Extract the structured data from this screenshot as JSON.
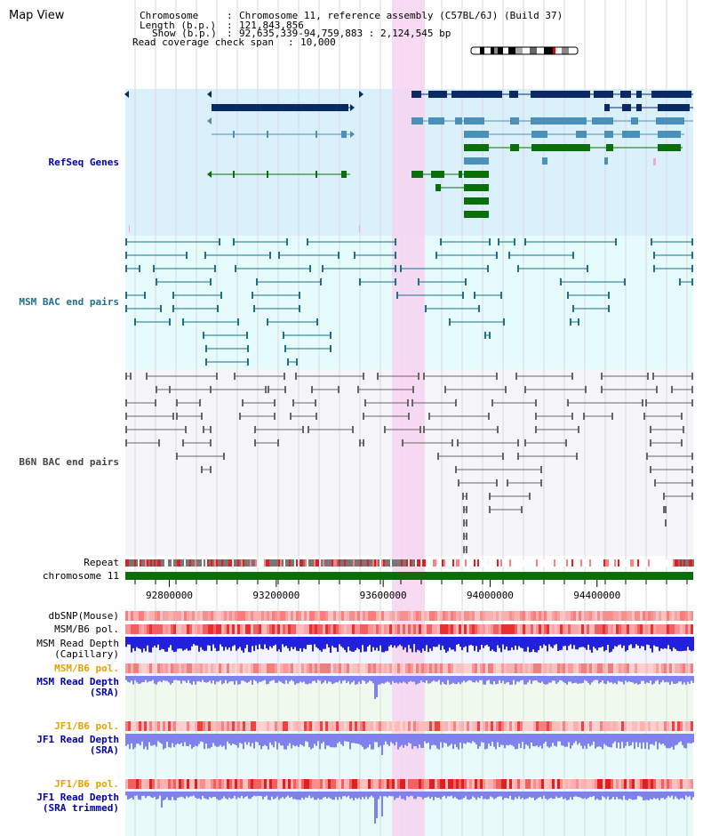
{
  "page": {
    "title": "Map View"
  },
  "header": {
    "chromosome_key": "Chromosome",
    "chromosome_val": "Chromosome 11, reference assembly (C57BL/6J) (Build 37)",
    "length_key": "Length (b.p.)",
    "length_val": "121,843,856",
    "show_key": "Show (b.p.)",
    "show_val": "92,635,339-94,759,883 : 2,124,545 bp",
    "coverage_key": "Read coverage check span",
    "coverage_val": "10,000"
  },
  "tracks": {
    "refseq": "RefSeq Genes",
    "msm_bac": "MSM BAC end pairs",
    "b6n_bac": "B6N BAC end pairs",
    "repeat": "Repeat",
    "chromosome": "chromosome 11",
    "dbsnp": "dbSNP(Mouse)",
    "msm_b6_pol_1": "MSM/B6 pol.",
    "msm_depth_cap_1": "MSM Read Depth",
    "msm_depth_cap_2": "(Capillary)",
    "msm_b6_pol_2": "MSM/B6 pol.",
    "msm_depth_sra_1": "MSM Read Depth",
    "msm_depth_sra_2": "(SRA)",
    "jf1_b6_pol_1": "JF1/B6 pol.",
    "jf1_depth_sra_1": "JF1 Read Depth",
    "jf1_depth_sra_2": "(SRA)",
    "jf1_b6_pol_2": "JF1/B6 pol.",
    "jf1_depth_trim_1": "JF1 Read Depth",
    "jf1_depth_trim_2": "(SRA trimmed)"
  },
  "axis": {
    "range": [
      92635339,
      94759883
    ],
    "ticks": [
      {
        "value": 92800000,
        "label": "92800000"
      },
      {
        "value": 93200000,
        "label": "93200000"
      },
      {
        "value": 93600000,
        "label": "93600000"
      },
      {
        "value": 94000000,
        "label": "94000000"
      },
      {
        "value": 94400000,
        "label": "94400000"
      }
    ]
  },
  "colors": {
    "refseq_bg": "#daf0fb",
    "msm_bg": "#e6fbfb",
    "b6n_bg": "#f6f6fa",
    "highlight": "#f7d4f1",
    "gene_dark": "#0a2a66",
    "gene_mid": "#4a90b8",
    "gene_green": "#0a6e0a",
    "bac_msm": "#1f6f8b",
    "bac_b6n": "#666666",
    "chromosome_bar": "#0a6e0a",
    "label_blue": "#0000aa",
    "label_teal": "#1f6f8b",
    "label_gray": "#444444",
    "label_orange": "#e6a000",
    "depth_blue": "#2020dd",
    "depth_light": "#8080f0"
  }
}
